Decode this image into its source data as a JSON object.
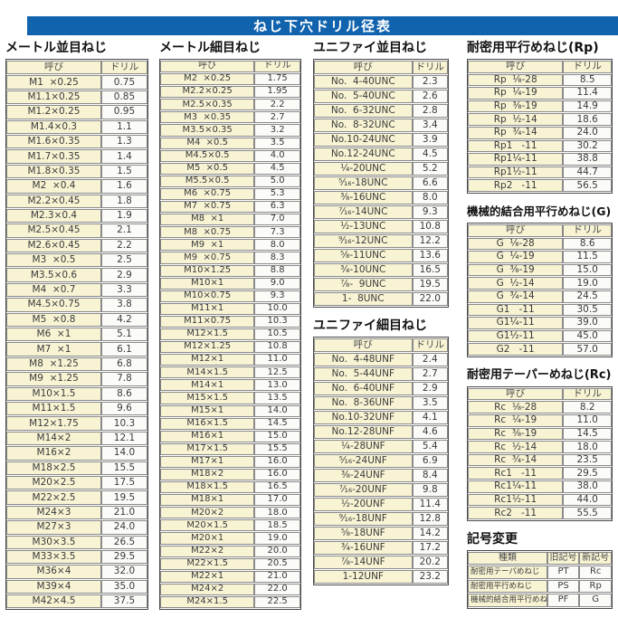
{
  "page": {
    "title": "ねじ下穴ドリル径表"
  },
  "colors": {
    "accent_blue": "#1163ad",
    "cell_yellow": "#f7f3d3"
  },
  "sections": {
    "metric_coarse": {
      "title": "メートル並目ねじ",
      "headers": [
        "呼び",
        "ドリル"
      ],
      "rows": [
        [
          "M1  ×0.25",
          "0.75"
        ],
        [
          "M1.1×0.25",
          "0.85"
        ],
        [
          "M1.2×0.25",
          "0.95"
        ],
        [
          "M1.4×0.3",
          "1.1"
        ],
        [
          "M1.6×0.35",
          "1.3"
        ],
        [
          "M1.7×0.35",
          "1.4"
        ],
        [
          "M1.8×0.35",
          "1.5"
        ],
        [
          "M2  ×0.4",
          "1.6"
        ],
        [
          "M2.2×0.45",
          "1.8"
        ],
        [
          "M2.3×0.4",
          "1.9"
        ],
        [
          "M2.5×0.45",
          "2.1"
        ],
        [
          "M2.6×0.45",
          "2.2"
        ],
        [
          "M3  ×0.5",
          "2.5"
        ],
        [
          "M3.5×0.6",
          "2.9"
        ],
        [
          "M4  ×0.7",
          "3.3"
        ],
        [
          "M4.5×0.75",
          "3.8"
        ],
        [
          "M5  ×0.8",
          "4.2"
        ],
        [
          "M6  ×1",
          "5.1"
        ],
        [
          "M7  ×1",
          "6.1"
        ],
        [
          "M8  ×1.25",
          "6.8"
        ],
        [
          "M9  ×1.25",
          "7.8"
        ],
        [
          "M10×1.5",
          "8.6"
        ],
        [
          "M11×1.5",
          "9.6"
        ],
        [
          "M12×1.75",
          "10.3"
        ],
        [
          "M14×2",
          "12.1"
        ],
        [
          "M16×2",
          "14.0"
        ],
        [
          "M18×2.5",
          "15.5"
        ],
        [
          "M20×2.5",
          "17.5"
        ],
        [
          "M22×2.5",
          "19.5"
        ],
        [
          "M24×3",
          "21.0"
        ],
        [
          "M27×3",
          "24.0"
        ],
        [
          "M30×3.5",
          "26.5"
        ],
        [
          "M33×3.5",
          "29.5"
        ],
        [
          "M36×4",
          "32.0"
        ],
        [
          "M39×4",
          "35.0"
        ],
        [
          "M42×4.5",
          "37.5"
        ]
      ]
    },
    "metric_fine": {
      "title": "メートル細目ねじ",
      "headers": [
        "呼び",
        "ドリル"
      ],
      "rows": [
        [
          "M2  ×0.25",
          "1.75"
        ],
        [
          "M2.2×0.25",
          "1.95"
        ],
        [
          "M2.5×0.35",
          "2.2"
        ],
        [
          "M3  ×0.35",
          "2.7"
        ],
        [
          "M3.5×0.35",
          "3.2"
        ],
        [
          "M4  ×0.5",
          "3.5"
        ],
        [
          "M4.5×0.5",
          "4.0"
        ],
        [
          "M5  ×0.5",
          "4.5"
        ],
        [
          "M5.5×0.5",
          "5.0"
        ],
        [
          "M6  ×0.75",
          "5.3"
        ],
        [
          "M7  ×0.75",
          "6.3"
        ],
        [
          "M8  ×1",
          "7.0"
        ],
        [
          "M8  ×0.75",
          "7.3"
        ],
        [
          "M9  ×1",
          "8.0"
        ],
        [
          "M9  ×0.75",
          "8.3"
        ],
        [
          "M10×1.25",
          "8.8"
        ],
        [
          "M10×1",
          "9.0"
        ],
        [
          "M10×0.75",
          "9.3"
        ],
        [
          "M11×1",
          "10.0"
        ],
        [
          "M11×0.75",
          "10.3"
        ],
        [
          "M12×1.5",
          "10.5"
        ],
        [
          "M12×1.25",
          "10.8"
        ],
        [
          "M12×1",
          "11.0"
        ],
        [
          "M14×1.5",
          "12.5"
        ],
        [
          "M14×1",
          "13.0"
        ],
        [
          "M15×1.5",
          "13.5"
        ],
        [
          "M15×1",
          "14.0"
        ],
        [
          "M16×1.5",
          "14.5"
        ],
        [
          "M16×1",
          "15.0"
        ],
        [
          "M17×1.5",
          "15.5"
        ],
        [
          "M17×1",
          "16.0"
        ],
        [
          "M18×2",
          "16.0"
        ],
        [
          "M18×1.5",
          "16.5"
        ],
        [
          "M18×1",
          "17.0"
        ],
        [
          "M20×2",
          "18.0"
        ],
        [
          "M20×1.5",
          "18.5"
        ],
        [
          "M20×1",
          "19.0"
        ],
        [
          "M22×2",
          "20.0"
        ],
        [
          "M22×1.5",
          "20.5"
        ],
        [
          "M22×1",
          "21.0"
        ],
        [
          "M24×2",
          "22.0"
        ],
        [
          "M24×1.5",
          "22.5"
        ]
      ]
    },
    "unified_coarse": {
      "title": "ユニファイ並目ねじ",
      "headers": [
        "呼び",
        "ドリル"
      ],
      "rows": [
        [
          "No.  4-40UNC",
          "2.3"
        ],
        [
          "No.  5-40UNC",
          "2.6"
        ],
        [
          "No.  6-32UNC",
          "2.8"
        ],
        [
          "No.  8-32UNC",
          "3.4"
        ],
        [
          "No.10-24UNC",
          "3.9"
        ],
        [
          "No.12-24UNC",
          "4.5"
        ],
        [
          "¹⁄₄-20UNC",
          "5.2"
        ],
        [
          "⁵⁄₁₆-18UNC",
          "6.6"
        ],
        [
          "³⁄₈-16UNC",
          "8.0"
        ],
        [
          "⁷⁄₁₆-14UNC",
          "9.3"
        ],
        [
          "¹⁄₂-13UNC",
          "10.8"
        ],
        [
          "⁹⁄₁₆-12UNC",
          "12.2"
        ],
        [
          "⁵⁄₈-11UNC",
          "13.6"
        ],
        [
          "³⁄₄-10UNC",
          "16.5"
        ],
        [
          "⁷⁄₈-  9UNC",
          "19.5"
        ],
        [
          "1-  8UNC",
          "22.0"
        ]
      ]
    },
    "unified_fine": {
      "title": "ユニファイ細目ねじ",
      "headers": [
        "呼び",
        "ドリル"
      ],
      "rows": [
        [
          "No.  4-48UNF",
          "2.4"
        ],
        [
          "No.  5-44UNF",
          "2.7"
        ],
        [
          "No.  6-40UNF",
          "2.9"
        ],
        [
          "No.  8-36UNF",
          "3.5"
        ],
        [
          "No.10-32UNF",
          "4.1"
        ],
        [
          "No.12-28UNF",
          "4.6"
        ],
        [
          "¹⁄₄-28UNF",
          "5.4"
        ],
        [
          "⁵⁄₁₆-24UNF",
          "6.9"
        ],
        [
          "³⁄₈-24UNF",
          "8.4"
        ],
        [
          "⁷⁄₁₆-20UNF",
          "9.8"
        ],
        [
          "¹⁄₂-20UNF",
          "11.4"
        ],
        [
          "⁹⁄₁₆-18UNF",
          "12.8"
        ],
        [
          "⁵⁄₈-18UNF",
          "14.2"
        ],
        [
          "³⁄₄-16UNF",
          "17.2"
        ],
        [
          "⁷⁄₈-14UNF",
          "20.2"
        ],
        [
          "1-12UNF",
          "23.2"
        ]
      ]
    },
    "rp": {
      "title": "耐密用平行めねじ(Rp)",
      "headers": [
        "呼び",
        "ドリル"
      ],
      "rows": [
        [
          "Rp  ¹⁄₈-28",
          "8.5"
        ],
        [
          "Rp  ¹⁄₄-19",
          "11.4"
        ],
        [
          "Rp  ³⁄₈-19",
          "14.9"
        ],
        [
          "Rp  ¹⁄₂-14",
          "18.6"
        ],
        [
          "Rp  ³⁄₄-14",
          "24.0"
        ],
        [
          "Rp1   -11",
          "30.2"
        ],
        [
          "Rp1¹⁄₄-11",
          "38.8"
        ],
        [
          "Rp1¹⁄₂-11",
          "44.7"
        ],
        [
          "Rp2   -11",
          "56.5"
        ]
      ]
    },
    "g": {
      "title": "機械的結合用平行めねじ(G)",
      "headers": [
        "呼び",
        "ドリル"
      ],
      "rows": [
        [
          "G  ¹⁄₈-28",
          "8.6"
        ],
        [
          "G  ¹⁄₄-19",
          "11.5"
        ],
        [
          "G  ³⁄₈-19",
          "15.0"
        ],
        [
          "G  ¹⁄₂-14",
          "19.0"
        ],
        [
          "G  ³⁄₄-14",
          "24.5"
        ],
        [
          "G1   -11",
          "30.5"
        ],
        [
          "G1¹⁄₄-11",
          "39.0"
        ],
        [
          "G1¹⁄₂-11",
          "45.0"
        ],
        [
          "G2   -11",
          "57.0"
        ]
      ]
    },
    "rc": {
      "title": "耐密用テーパーめねじ(Rc)",
      "headers": [
        "呼び",
        "ドリル"
      ],
      "rows": [
        [
          "Rc  ¹⁄₈-28",
          "8.2"
        ],
        [
          "Rc  ¹⁄₄-19",
          "11.0"
        ],
        [
          "Rc  ³⁄₈-19",
          "14.5"
        ],
        [
          "Rc  ¹⁄₂-14",
          "18.0"
        ],
        [
          "Rc  ³⁄₄-14",
          "23.5"
        ],
        [
          "Rc1   -11",
          "29.5"
        ],
        [
          "Rc1¹⁄₄-11",
          "38.0"
        ],
        [
          "Rc1¹⁄₂-11",
          "44.0"
        ],
        [
          "Rc2   -11",
          "55.5"
        ]
      ]
    },
    "symbol_change": {
      "title": "記号変更",
      "headers": [
        "種類",
        "旧記号",
        "新記号"
      ],
      "rows": [
        [
          "耐密用テーパめねじ",
          "PT",
          "Rc"
        ],
        [
          "耐密用平行めねじ",
          "PS",
          "Rp"
        ],
        [
          "機械的結合用平行めねじ",
          "PF",
          "G"
        ]
      ]
    }
  }
}
